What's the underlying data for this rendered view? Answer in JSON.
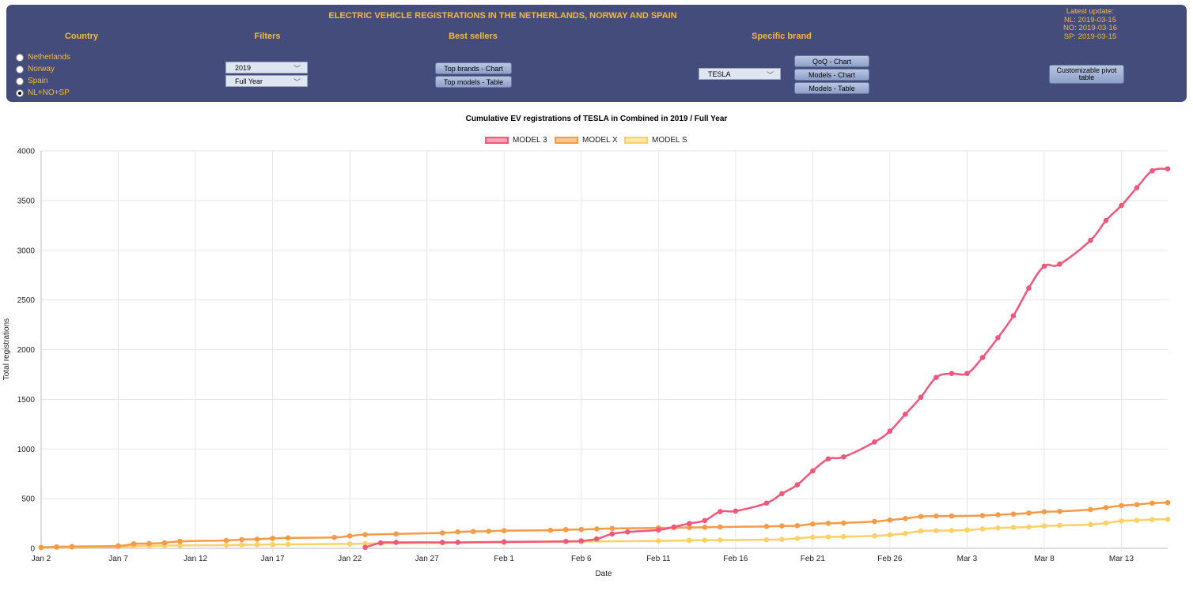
{
  "header": {
    "title": "ELECTRIC VEHICLE REGISTRATIONS IN THE NETHERLANDS, NORWAY AND SPAIN",
    "sections": {
      "country": "Country",
      "filters": "Filters",
      "best_sellers": "Best sellers",
      "specific_brand": "Specific brand"
    },
    "countries": [
      "Netherlands",
      "Norway",
      "Spain",
      "NL+NO+SP"
    ],
    "selected_country": "NL+NO+SP",
    "filters": {
      "year": "2019",
      "period": "Full Year"
    },
    "best_sellers_buttons": [
      "Top brands - Chart",
      "Top models - Table"
    ],
    "brand": "TESLA",
    "brand_buttons": [
      "QoQ - Chart",
      "Models - Chart",
      "Models - Table"
    ],
    "pivot_button": "Customizable pivot table",
    "latest_update": {
      "title": "Latest update:",
      "nl": "NL: 2019-03-15",
      "no": "NO: 2019-03-16",
      "sp": "SP: 2019-03-15"
    }
  },
  "colors": {
    "panel": "#434c7a",
    "accent": "#f5b942"
  },
  "chart_data": {
    "type": "line",
    "title": "Cumulative EV registrations of TESLA in Combined in 2019 / Full Year",
    "xlabel": "Date",
    "ylabel": "Total registrations",
    "ylim": [
      0,
      4000
    ],
    "yticks": [
      0,
      500,
      1000,
      1500,
      2000,
      2500,
      3000,
      3500,
      4000
    ],
    "xlim": [
      "2019-01-02",
      "2019-03-16"
    ],
    "xticks": [
      "Jan 2",
      "Jan 7",
      "Jan 12",
      "Jan 17",
      "Jan 22",
      "Jan 27",
      "Feb 1",
      "Feb 6",
      "Feb 11",
      "Feb 16",
      "Feb 21",
      "Feb 26",
      "Mar 3",
      "Mar 8",
      "Mar 13"
    ],
    "grid": true,
    "legend_position": "top",
    "series": [
      {
        "name": "MODEL 3",
        "color": "#f0577a",
        "points": [
          [
            "2019-01-23",
            10
          ],
          [
            "2019-01-24",
            55
          ],
          [
            "2019-01-25",
            60
          ],
          [
            "2019-01-28",
            60
          ],
          [
            "2019-01-29",
            60
          ],
          [
            "2019-02-01",
            65
          ],
          [
            "2019-02-05",
            70
          ],
          [
            "2019-02-06",
            75
          ],
          [
            "2019-02-07",
            95
          ],
          [
            "2019-02-08",
            145
          ],
          [
            "2019-02-09",
            165
          ],
          [
            "2019-02-11",
            185
          ],
          [
            "2019-02-12",
            215
          ],
          [
            "2019-02-13",
            250
          ],
          [
            "2019-02-14",
            280
          ],
          [
            "2019-02-15",
            370
          ],
          [
            "2019-02-16",
            375
          ],
          [
            "2019-02-18",
            455
          ],
          [
            "2019-02-19",
            550
          ],
          [
            "2019-02-20",
            640
          ],
          [
            "2019-02-21",
            780
          ],
          [
            "2019-02-22",
            900
          ],
          [
            "2019-02-23",
            920
          ],
          [
            "2019-02-25",
            1070
          ],
          [
            "2019-02-26",
            1180
          ],
          [
            "2019-02-27",
            1350
          ],
          [
            "2019-02-28",
            1520
          ],
          [
            "2019-03-01",
            1720
          ],
          [
            "2019-03-02",
            1760
          ],
          [
            "2019-03-03",
            1760
          ],
          [
            "2019-03-04",
            1920
          ],
          [
            "2019-03-05",
            2120
          ],
          [
            "2019-03-06",
            2340
          ],
          [
            "2019-03-07",
            2620
          ],
          [
            "2019-03-08",
            2840
          ],
          [
            "2019-03-09",
            2860
          ],
          [
            "2019-03-11",
            3100
          ],
          [
            "2019-03-12",
            3300
          ],
          [
            "2019-03-13",
            3450
          ],
          [
            "2019-03-14",
            3630
          ],
          [
            "2019-03-15",
            3800
          ],
          [
            "2019-03-16",
            3820
          ]
        ]
      },
      {
        "name": "MODEL X",
        "color": "#f79a45",
        "points": [
          [
            "2019-01-02",
            10
          ],
          [
            "2019-01-03",
            15
          ],
          [
            "2019-01-04",
            18
          ],
          [
            "2019-01-07",
            25
          ],
          [
            "2019-01-08",
            45
          ],
          [
            "2019-01-09",
            48
          ],
          [
            "2019-01-10",
            55
          ],
          [
            "2019-01-11",
            70
          ],
          [
            "2019-01-14",
            80
          ],
          [
            "2019-01-15",
            88
          ],
          [
            "2019-01-16",
            92
          ],
          [
            "2019-01-17",
            100
          ],
          [
            "2019-01-18",
            105
          ],
          [
            "2019-01-21",
            110
          ],
          [
            "2019-01-22",
            125
          ],
          [
            "2019-01-23",
            138
          ],
          [
            "2019-01-25",
            145
          ],
          [
            "2019-01-28",
            155
          ],
          [
            "2019-01-29",
            165
          ],
          [
            "2019-01-30",
            170
          ],
          [
            "2019-01-31",
            172
          ],
          [
            "2019-02-01",
            178
          ],
          [
            "2019-02-04",
            182
          ],
          [
            "2019-02-05",
            188
          ],
          [
            "2019-02-06",
            190
          ],
          [
            "2019-02-07",
            195
          ],
          [
            "2019-02-08",
            200
          ],
          [
            "2019-02-11",
            205
          ],
          [
            "2019-02-12",
            208
          ],
          [
            "2019-02-13",
            210
          ],
          [
            "2019-02-14",
            212
          ],
          [
            "2019-02-15",
            215
          ],
          [
            "2019-02-18",
            220
          ],
          [
            "2019-02-19",
            225
          ],
          [
            "2019-02-20",
            228
          ],
          [
            "2019-02-21",
            245
          ],
          [
            "2019-02-22",
            252
          ],
          [
            "2019-02-23",
            255
          ],
          [
            "2019-02-25",
            270
          ],
          [
            "2019-02-26",
            285
          ],
          [
            "2019-02-27",
            300
          ],
          [
            "2019-02-28",
            320
          ],
          [
            "2019-03-01",
            325
          ],
          [
            "2019-03-02",
            325
          ],
          [
            "2019-03-04",
            330
          ],
          [
            "2019-03-05",
            338
          ],
          [
            "2019-03-06",
            345
          ],
          [
            "2019-03-07",
            355
          ],
          [
            "2019-03-08",
            368
          ],
          [
            "2019-03-09",
            372
          ],
          [
            "2019-03-11",
            390
          ],
          [
            "2019-03-12",
            410
          ],
          [
            "2019-03-13",
            430
          ],
          [
            "2019-03-14",
            440
          ],
          [
            "2019-03-15",
            455
          ],
          [
            "2019-03-16",
            460
          ]
        ]
      },
      {
        "name": "MODEL S",
        "color": "#fbd067",
        "points": [
          [
            "2019-01-02",
            8
          ],
          [
            "2019-01-03",
            10
          ],
          [
            "2019-01-04",
            12
          ],
          [
            "2019-01-07",
            15
          ],
          [
            "2019-01-08",
            22
          ],
          [
            "2019-01-09",
            25
          ],
          [
            "2019-01-10",
            27
          ],
          [
            "2019-01-11",
            30
          ],
          [
            "2019-01-14",
            32
          ],
          [
            "2019-01-15",
            35
          ],
          [
            "2019-01-16",
            37
          ],
          [
            "2019-01-17",
            38
          ],
          [
            "2019-01-18",
            40
          ],
          [
            "2019-01-22",
            45
          ],
          [
            "2019-01-23",
            48
          ],
          [
            "2019-01-24",
            50
          ],
          [
            "2019-01-28",
            55
          ],
          [
            "2019-02-01",
            60
          ],
          [
            "2019-02-06",
            68
          ],
          [
            "2019-02-11",
            75
          ],
          [
            "2019-02-13",
            80
          ],
          [
            "2019-02-14",
            82
          ],
          [
            "2019-02-15",
            83
          ],
          [
            "2019-02-18",
            86
          ],
          [
            "2019-02-19",
            90
          ],
          [
            "2019-02-20",
            100
          ],
          [
            "2019-02-21",
            112
          ],
          [
            "2019-02-22",
            115
          ],
          [
            "2019-02-23",
            118
          ],
          [
            "2019-02-25",
            125
          ],
          [
            "2019-02-26",
            135
          ],
          [
            "2019-02-27",
            150
          ],
          [
            "2019-02-28",
            175
          ],
          [
            "2019-03-01",
            178
          ],
          [
            "2019-03-02",
            180
          ],
          [
            "2019-03-03",
            185
          ],
          [
            "2019-03-04",
            195
          ],
          [
            "2019-03-05",
            205
          ],
          [
            "2019-03-06",
            210
          ],
          [
            "2019-03-07",
            215
          ],
          [
            "2019-03-08",
            225
          ],
          [
            "2019-03-09",
            230
          ],
          [
            "2019-03-11",
            240
          ],
          [
            "2019-03-12",
            255
          ],
          [
            "2019-03-13",
            275
          ],
          [
            "2019-03-14",
            282
          ],
          [
            "2019-03-15",
            290
          ],
          [
            "2019-03-16",
            292
          ]
        ]
      }
    ]
  }
}
